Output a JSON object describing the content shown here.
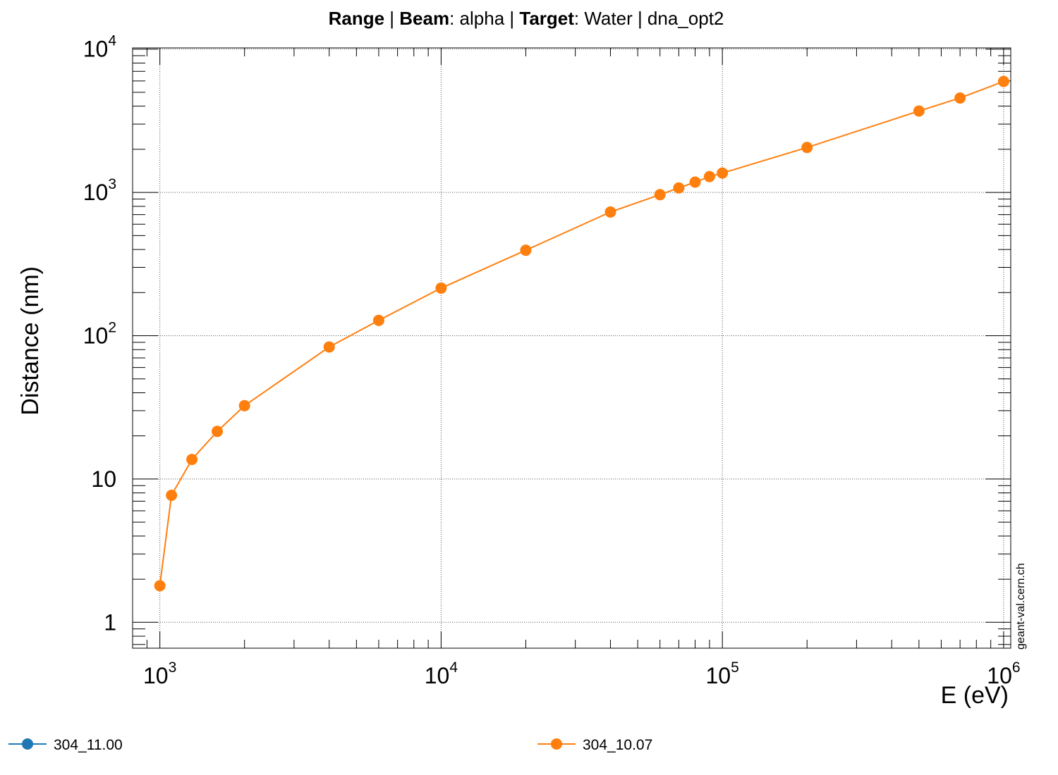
{
  "chart_data": {
    "type": "line",
    "title": {
      "parts": [
        {
          "text": "Range",
          "bold": true
        },
        {
          "text": " | ",
          "bold": false
        },
        {
          "text": "Beam",
          "bold": true
        },
        {
          "text": ": alpha | ",
          "bold": false
        },
        {
          "text": "Target",
          "bold": true
        },
        {
          "text": ": Water | dna_opt2",
          "bold": false
        }
      ]
    },
    "xlabel": "E (eV)",
    "ylabel": "Distance (nm)",
    "xscale": "log",
    "yscale": "log",
    "xlim": [
      800,
      1060000
    ],
    "ylim": [
      0.66,
      10200
    ],
    "grid": true,
    "legend_placement": "bottom",
    "x_ticks": [
      {
        "value": 1000,
        "base": "10",
        "exp": "3"
      },
      {
        "value": 10000,
        "base": "10",
        "exp": "4"
      },
      {
        "value": 100000,
        "base": "10",
        "exp": "5"
      },
      {
        "value": 1000000,
        "base": "10",
        "exp": "6"
      }
    ],
    "y_ticks": [
      {
        "value": 1,
        "base": "1",
        "exp": ""
      },
      {
        "value": 10,
        "base": "10",
        "exp": ""
      },
      {
        "value": 100,
        "base": "10",
        "exp": "2"
      },
      {
        "value": 1000,
        "base": "10",
        "exp": "3"
      },
      {
        "value": 10000,
        "base": "10",
        "exp": "4"
      }
    ],
    "series": [
      {
        "name": "304_11.00",
        "color": "#1f77b4",
        "x": [],
        "y": []
      },
      {
        "name": "304_10.07",
        "color": "#ff7f0e",
        "x": [
          1000,
          1100,
          1300,
          1600,
          2000,
          4000,
          6000,
          10000,
          20000,
          40000,
          60000,
          70000,
          80000,
          90000,
          100000,
          200000,
          500000,
          700000,
          1000000
        ],
        "y": [
          1.8,
          7.7,
          13.7,
          21.5,
          32.5,
          83.5,
          128,
          215,
          395,
          730,
          965,
          1075,
          1180,
          1290,
          1365,
          2060,
          3700,
          4560,
          5950
        ]
      }
    ]
  },
  "watermark": "geant-val.cern.ch"
}
